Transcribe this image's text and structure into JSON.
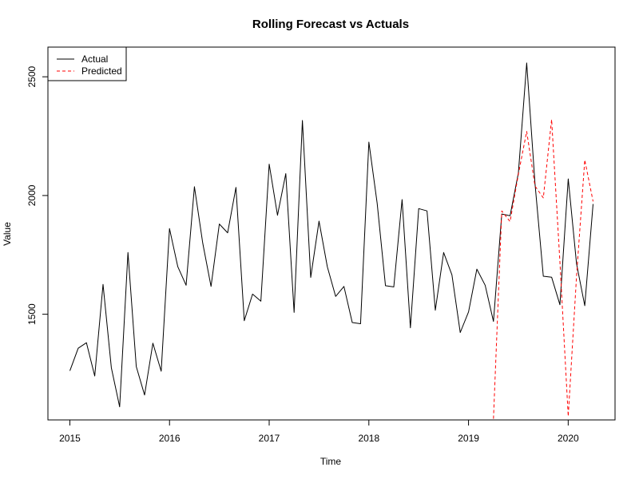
{
  "chart_data": {
    "type": "line",
    "title": "Rolling Forecast vs Actuals",
    "xlabel": "Time",
    "ylabel": "Value",
    "xlim": [
      2014.78,
      2020.47
    ],
    "ylim": [
      1055,
      2625
    ],
    "x_ticks": [
      2015,
      2016,
      2017,
      2018,
      2019,
      2020
    ],
    "y_ticks": [
      1500,
      2000,
      2500
    ],
    "legend_position": "top-left",
    "series": [
      {
        "name": "Actual",
        "color": "#000000",
        "dash": "solid",
        "x_start": 2015,
        "step_months": 1,
        "values": [
          1262,
          1357,
          1380,
          1240,
          1626,
          1275,
          1110,
          1760,
          1280,
          1160,
          1378,
          1260,
          1861,
          1700,
          1622,
          2037,
          1800,
          1617,
          1880,
          1843,
          2034,
          1473,
          1585,
          1555,
          2132,
          1917,
          2092,
          1508,
          2316,
          1655,
          1892,
          1700,
          1575,
          1617,
          1465,
          1460,
          2225,
          1967,
          1620,
          1615,
          1983,
          1443,
          1945,
          1935,
          1517,
          1760,
          1666,
          1423,
          1510,
          1690,
          1622,
          1470,
          1922,
          1915,
          2095,
          2558,
          2050,
          1660,
          1656,
          1540,
          2070,
          1713,
          1536,
          1964
        ]
      },
      {
        "name": "Predicted",
        "color": "#ff0000",
        "dash": "dashed",
        "x_start": 2019.25,
        "step_months": 1,
        "values": [
          1060,
          1935,
          1890,
          2090,
          2270,
          2040,
          1990,
          2320,
          1720,
          1070,
          1660,
          2150,
          1975
        ]
      }
    ]
  }
}
